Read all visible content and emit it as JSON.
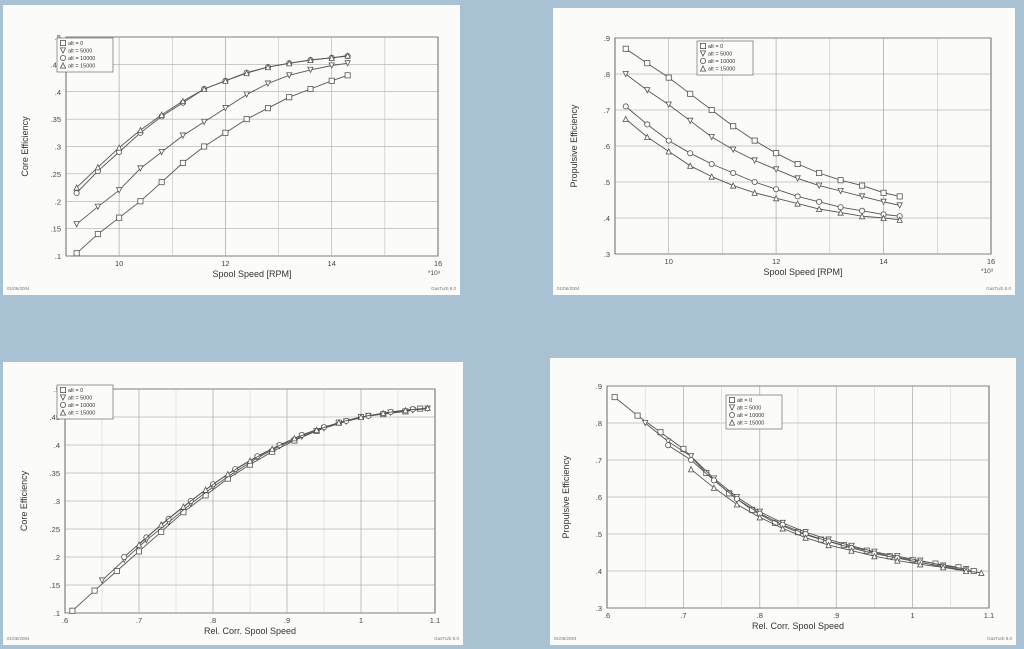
{
  "colors": {
    "background": "#a9c2d3",
    "paper": "#fbfbf9",
    "ink": "#555555"
  },
  "legend_labels": [
    "alt = 0",
    "alt = 5000",
    "alt = 10000",
    "alt = 15000"
  ],
  "chart_data": [
    {
      "type": "line",
      "xlabel": "Spool Speed [RPM]",
      "ylabel": "Core Efficiency",
      "xlim": [
        9,
        16
      ],
      "ylim": [
        0.1,
        0.5
      ],
      "grid": true,
      "legend": "top-left",
      "xticks": [
        "10",
        "12",
        "14",
        "16"
      ],
      "xscale_note": "*10³",
      "yticks": [
        ".1",
        ".15",
        ".2",
        ".25",
        ".3",
        ".35",
        ".4",
        ".45",
        ".5"
      ],
      "footer_left": "01/06/2004",
      "footer_right": "GasTurb 9.0",
      "series": [
        {
          "name": "alt = 0",
          "marker": "square",
          "x": [
            9.2,
            9.6,
            10,
            10.4,
            10.8,
            11.2,
            11.6,
            12,
            12.4,
            12.8,
            13.2,
            13.6,
            14,
            14.3
          ],
          "y": [
            0.105,
            0.14,
            0.17,
            0.2,
            0.235,
            0.27,
            0.3,
            0.325,
            0.35,
            0.37,
            0.39,
            0.405,
            0.42,
            0.43
          ]
        },
        {
          "name": "alt = 5000",
          "marker": "triangle-down",
          "x": [
            9.2,
            9.6,
            10,
            10.4,
            10.8,
            11.2,
            11.6,
            12,
            12.4,
            12.8,
            13.2,
            13.6,
            14,
            14.3
          ],
          "y": [
            0.158,
            0.19,
            0.22,
            0.26,
            0.29,
            0.32,
            0.345,
            0.37,
            0.395,
            0.415,
            0.43,
            0.44,
            0.448,
            0.452
          ]
        },
        {
          "name": "alt = 10000",
          "marker": "circle",
          "x": [
            9.2,
            9.6,
            10,
            10.4,
            10.8,
            11.2,
            11.6,
            12,
            12.4,
            12.8,
            13.2,
            13.6,
            14,
            14.3
          ],
          "y": [
            0.215,
            0.255,
            0.29,
            0.325,
            0.355,
            0.38,
            0.405,
            0.42,
            0.435,
            0.445,
            0.452,
            0.458,
            0.462,
            0.465
          ]
        },
        {
          "name": "alt = 15000",
          "marker": "triangle-up",
          "x": [
            9.2,
            9.6,
            10,
            10.4,
            10.8,
            11.2,
            11.6,
            12,
            12.4,
            12.8,
            13.2,
            13.6,
            14,
            14.3
          ],
          "y": [
            0.225,
            0.262,
            0.298,
            0.33,
            0.358,
            0.383,
            0.405,
            0.42,
            0.434,
            0.445,
            0.452,
            0.458,
            0.462,
            0.466
          ]
        }
      ]
    },
    {
      "type": "line",
      "xlabel": "Spool Speed [RPM]",
      "ylabel": "Propulsive Efficiency",
      "xlim": [
        9,
        16
      ],
      "ylim": [
        0.3,
        0.9
      ],
      "grid": true,
      "legend": "top-right",
      "xticks": [
        "10",
        "12",
        "14",
        "16"
      ],
      "xscale_note": "*10³",
      "yticks": [
        ".3",
        ".4",
        ".5",
        ".6",
        ".7",
        ".8",
        ".9"
      ],
      "footer_left": "01/06/2004",
      "footer_right": "GasTurb 9.0",
      "series": [
        {
          "name": "alt = 0",
          "marker": "square",
          "x": [
            9.2,
            9.6,
            10,
            10.4,
            10.8,
            11.2,
            11.6,
            12,
            12.4,
            12.8,
            13.2,
            13.6,
            14,
            14.3
          ],
          "y": [
            0.87,
            0.83,
            0.79,
            0.745,
            0.7,
            0.655,
            0.615,
            0.58,
            0.55,
            0.525,
            0.505,
            0.49,
            0.47,
            0.46
          ]
        },
        {
          "name": "alt = 5000",
          "marker": "triangle-down",
          "x": [
            9.2,
            9.6,
            10,
            10.4,
            10.8,
            11.2,
            11.6,
            12,
            12.4,
            12.8,
            13.2,
            13.6,
            14,
            14.3
          ],
          "y": [
            0.8,
            0.755,
            0.715,
            0.67,
            0.625,
            0.59,
            0.56,
            0.535,
            0.51,
            0.49,
            0.475,
            0.46,
            0.445,
            0.435
          ]
        },
        {
          "name": "alt = 10000",
          "marker": "circle",
          "x": [
            9.2,
            9.6,
            10,
            10.4,
            10.8,
            11.2,
            11.6,
            12,
            12.4,
            12.8,
            13.2,
            13.6,
            14,
            14.3
          ],
          "y": [
            0.71,
            0.66,
            0.615,
            0.58,
            0.55,
            0.525,
            0.5,
            0.48,
            0.46,
            0.445,
            0.43,
            0.42,
            0.41,
            0.405
          ]
        },
        {
          "name": "alt = 15000",
          "marker": "triangle-up",
          "x": [
            9.2,
            9.6,
            10,
            10.4,
            10.8,
            11.2,
            11.6,
            12,
            12.4,
            12.8,
            13.2,
            13.6,
            14,
            14.3
          ],
          "y": [
            0.675,
            0.625,
            0.585,
            0.545,
            0.515,
            0.49,
            0.47,
            0.455,
            0.44,
            0.425,
            0.415,
            0.405,
            0.4,
            0.395
          ]
        }
      ]
    },
    {
      "type": "line",
      "xlabel": "Rel. Corr. Spool Speed",
      "ylabel": "Core Efficiency",
      "xlim": [
        0.6,
        1.1
      ],
      "ylim": [
        0.1,
        0.5
      ],
      "grid": true,
      "legend": "top-left",
      "xticks": [
        ".6",
        ".7",
        ".8",
        ".9",
        "1",
        "1.1"
      ],
      "yticks": [
        ".1",
        ".15",
        ".2",
        ".25",
        ".3",
        ".35",
        ".4",
        ".45",
        ".5"
      ],
      "footer_left": "01/06/2004",
      "footer_right": "GasTurb 9.0",
      "series": [
        {
          "name": "alt = 0",
          "marker": "square",
          "x": [
            0.61,
            0.64,
            0.67,
            0.7,
            0.73,
            0.76,
            0.79,
            0.82,
            0.85,
            0.88,
            0.91,
            0.94,
            0.97,
            1.0,
            1.03,
            1.06,
            1.08
          ],
          "y": [
            0.104,
            0.14,
            0.175,
            0.21,
            0.245,
            0.28,
            0.31,
            0.34,
            0.365,
            0.388,
            0.408,
            0.425,
            0.44,
            0.45,
            0.455,
            0.46,
            0.465
          ]
        },
        {
          "name": "alt = 5000",
          "marker": "triangle-down",
          "x": [
            0.65,
            0.68,
            0.71,
            0.74,
            0.77,
            0.8,
            0.83,
            0.86,
            0.89,
            0.92,
            0.95,
            0.98,
            1.01,
            1.04,
            1.07,
            1.09
          ],
          "y": [
            0.158,
            0.195,
            0.23,
            0.262,
            0.295,
            0.325,
            0.352,
            0.377,
            0.398,
            0.415,
            0.43,
            0.442,
            0.452,
            0.458,
            0.462,
            0.465
          ]
        },
        {
          "name": "alt = 10000",
          "marker": "circle",
          "x": [
            0.68,
            0.71,
            0.74,
            0.77,
            0.8,
            0.83,
            0.86,
            0.89,
            0.92,
            0.95,
            0.98,
            1.01,
            1.04,
            1.07
          ],
          "y": [
            0.2,
            0.235,
            0.268,
            0.3,
            0.33,
            0.357,
            0.38,
            0.4,
            0.418,
            0.432,
            0.443,
            0.452,
            0.459,
            0.464
          ]
        },
        {
          "name": "alt = 15000",
          "marker": "triangle-up",
          "x": [
            0.7,
            0.73,
            0.76,
            0.79,
            0.82,
            0.85,
            0.88,
            0.91,
            0.94,
            0.97,
            1.0,
            1.03,
            1.06,
            1.09
          ],
          "y": [
            0.222,
            0.258,
            0.29,
            0.32,
            0.348,
            0.372,
            0.393,
            0.412,
            0.427,
            0.44,
            0.45,
            0.457,
            0.462,
            0.466
          ]
        }
      ]
    },
    {
      "type": "line",
      "xlabel": "Rel. Corr. Spool Speed",
      "ylabel": "Propulsive Efficiency",
      "xlim": [
        0.6,
        1.1
      ],
      "ylim": [
        0.3,
        0.9
      ],
      "grid": true,
      "legend": "top-center",
      "xticks": [
        ".6",
        ".7",
        ".8",
        ".9",
        "1",
        "1.1"
      ],
      "yticks": [
        ".3",
        ".4",
        ".5",
        ".6",
        ".7",
        ".8",
        ".9"
      ],
      "footer_left": "01/06/2004",
      "footer_right": "GasTurb 9.0",
      "series": [
        {
          "name": "alt = 0",
          "marker": "square",
          "x": [
            0.61,
            0.64,
            0.67,
            0.7,
            0.73,
            0.76,
            0.79,
            0.82,
            0.85,
            0.88,
            0.91,
            0.94,
            0.97,
            1.0,
            1.03,
            1.06,
            1.08
          ],
          "y": [
            0.87,
            0.82,
            0.775,
            0.73,
            0.665,
            0.61,
            0.565,
            0.53,
            0.505,
            0.485,
            0.47,
            0.455,
            0.44,
            0.43,
            0.42,
            0.41,
            0.4
          ]
        },
        {
          "name": "alt = 5000",
          "marker": "triangle-down",
          "x": [
            0.65,
            0.68,
            0.71,
            0.74,
            0.77,
            0.8,
            0.83,
            0.86,
            0.89,
            0.92,
            0.95,
            0.98,
            1.01,
            1.04,
            1.07
          ],
          "y": [
            0.8,
            0.75,
            0.71,
            0.65,
            0.6,
            0.56,
            0.53,
            0.505,
            0.485,
            0.468,
            0.452,
            0.44,
            0.428,
            0.415,
            0.405
          ]
        },
        {
          "name": "alt = 10000",
          "marker": "circle",
          "x": [
            0.68,
            0.71,
            0.74,
            0.77,
            0.8,
            0.83,
            0.86,
            0.89,
            0.92,
            0.95,
            0.98,
            1.01,
            1.04,
            1.07
          ],
          "y": [
            0.74,
            0.7,
            0.645,
            0.595,
            0.555,
            0.525,
            0.5,
            0.48,
            0.462,
            0.447,
            0.435,
            0.423,
            0.412,
            0.402
          ]
        },
        {
          "name": "alt = 15000",
          "marker": "triangle-up",
          "x": [
            0.71,
            0.74,
            0.77,
            0.8,
            0.83,
            0.86,
            0.89,
            0.92,
            0.95,
            0.98,
            1.01,
            1.04,
            1.07,
            1.09
          ],
          "y": [
            0.675,
            0.625,
            0.58,
            0.545,
            0.515,
            0.49,
            0.47,
            0.455,
            0.44,
            0.428,
            0.418,
            0.41,
            0.4,
            0.395
          ]
        }
      ]
    }
  ]
}
